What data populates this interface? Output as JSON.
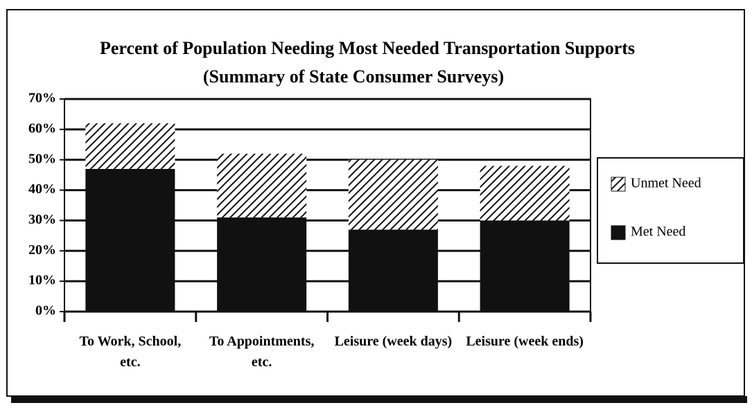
{
  "chart_data": {
    "type": "stacked_bar",
    "title": "Percent of Population Needing Most Needed Transportation Supports",
    "subtitle": "(Summary of State Consumer Surveys)",
    "categories": [
      "To Work, School, etc.",
      "To Appointments, etc.",
      "Leisure (week days)",
      "Leisure (week ends)"
    ],
    "series": [
      {
        "name": "Met Need",
        "color": "#111111",
        "values": [
          47,
          31,
          27,
          30
        ]
      },
      {
        "name": "Unmet Need",
        "color": "#111111",
        "hatch": true,
        "values": [
          15,
          21,
          23,
          18
        ]
      }
    ],
    "ylim": [
      0,
      70
    ],
    "yticks": [
      {
        "value": 0,
        "label": "0%"
      },
      {
        "value": 10,
        "label": "10%"
      },
      {
        "value": 20,
        "label": "20%"
      },
      {
        "value": 30,
        "label": "30%"
      },
      {
        "value": 40,
        "label": "40%"
      },
      {
        "value": 50,
        "label": "50%"
      },
      {
        "value": 60,
        "label": "60%"
      },
      {
        "value": 70,
        "label": "70%"
      }
    ],
    "grid": true,
    "legend": "right"
  }
}
